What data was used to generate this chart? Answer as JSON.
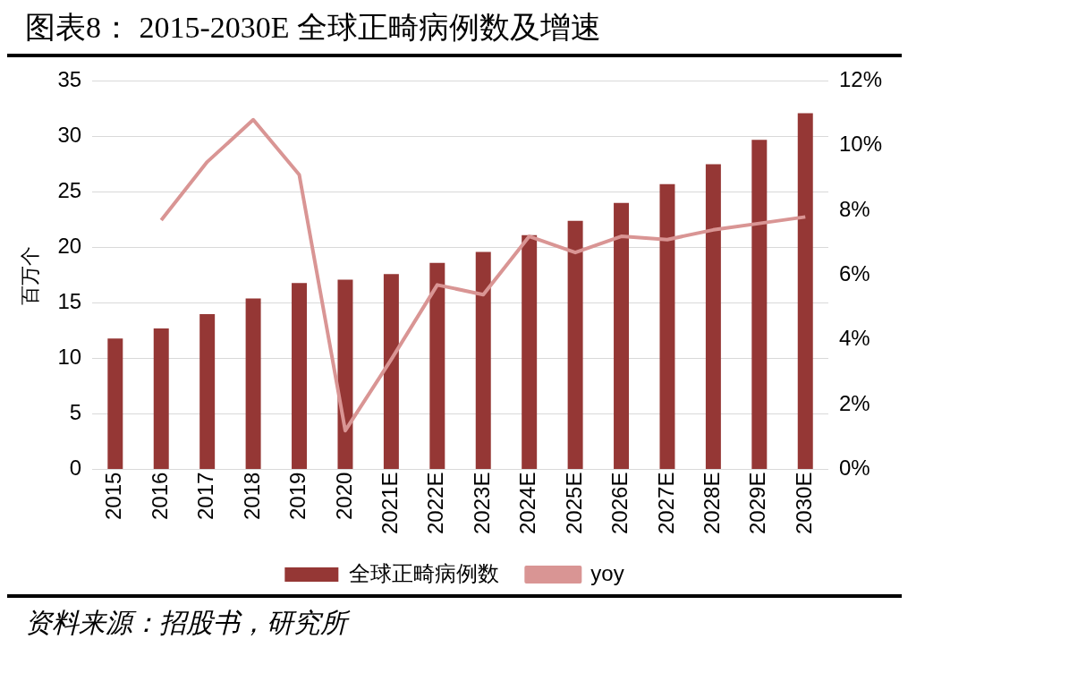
{
  "chart_data": {
    "type": "bar",
    "title": "图表8：  2015-2030E 全球正畸病例数及增速",
    "ylabel": "百万个",
    "categories": [
      "2015",
      "2016",
      "2017",
      "2018",
      "2019",
      "2020",
      "2021E",
      "2022E",
      "2023E",
      "2024E",
      "2025E",
      "2026E",
      "2027E",
      "2028E",
      "2029E",
      "2030E"
    ],
    "series": [
      {
        "name": "全球正畸病例数",
        "color": "#953735",
        "values": [
          11.8,
          12.7,
          14.0,
          15.4,
          16.8,
          17.1,
          17.6,
          18.6,
          19.6,
          21.1,
          22.4,
          24.0,
          25.7,
          27.5,
          29.7,
          32.1
        ]
      },
      {
        "name": "yoy",
        "type": "line",
        "axis": "y2",
        "color": "#d99594",
        "values": [
          null,
          7.7,
          9.5,
          10.8,
          9.1,
          1.2,
          3.4,
          5.7,
          5.4,
          7.2,
          6.7,
          7.2,
          7.1,
          7.4,
          7.6,
          7.8
        ]
      }
    ],
    "ylim": [
      0,
      35
    ],
    "yticks": [
      0,
      5,
      10,
      15,
      20,
      25,
      30,
      35
    ],
    "y2lim": [
      0,
      12
    ],
    "y2ticks": [
      {
        "value": 0,
        "label": "0%"
      },
      {
        "value": 2,
        "label": "2%"
      },
      {
        "value": 4,
        "label": "4%"
      },
      {
        "value": 6,
        "label": "6%"
      },
      {
        "value": 8,
        "label": "8%"
      },
      {
        "value": 10,
        "label": "10%"
      },
      {
        "value": 12,
        "label": "12%"
      }
    ],
    "grid": "y",
    "legend": "bottom",
    "marker": "none",
    "annotations": [
      "资料来源：招股书，研究所"
    ]
  }
}
